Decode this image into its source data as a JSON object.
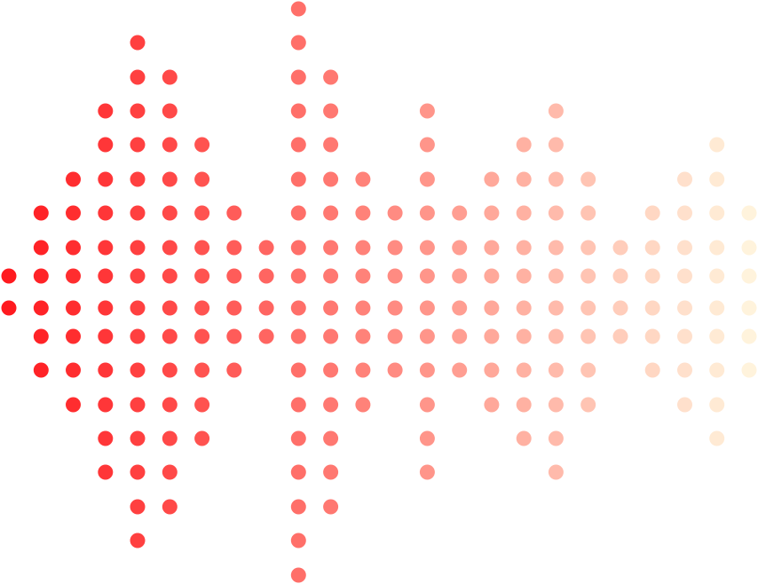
{
  "graphic": {
    "kind": "sound-wave-dot-matrix",
    "rows_total": 18,
    "column_dot_counts": [
      2,
      6,
      8,
      12,
      16,
      14,
      10,
      6,
      4,
      18,
      14,
      8,
      6,
      12,
      6,
      8,
      10,
      12,
      8,
      4,
      6,
      8,
      10,
      6
    ],
    "colors": {
      "start": "#ff1a1f",
      "end": "#fff3dc"
    }
  }
}
